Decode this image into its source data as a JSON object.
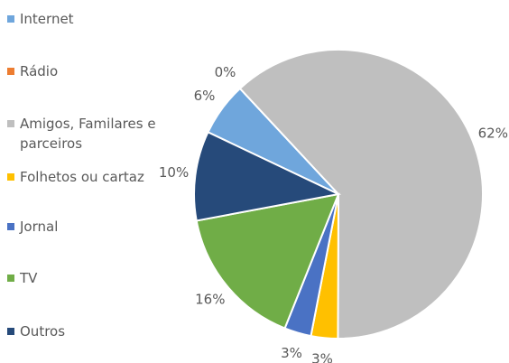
{
  "chart_data": {
    "type": "pie",
    "categories": [
      "Internet",
      "Rádio",
      "Amigos, Familares e parceiros",
      "Folhetos ou cartaz",
      "Jornal",
      "TV",
      "Outros"
    ],
    "values": [
      6,
      0,
      62,
      3,
      3,
      16,
      10
    ],
    "value_labels": [
      "6%",
      "0%",
      "62%",
      "3%",
      "3%",
      "16%",
      "10%"
    ],
    "colors": [
      "#6fa6dc",
      "#ed7d31",
      "#bfbfbf",
      "#ffc000",
      "#4a72c4",
      "#70ad47",
      "#264a7a"
    ],
    "legend": "left"
  }
}
